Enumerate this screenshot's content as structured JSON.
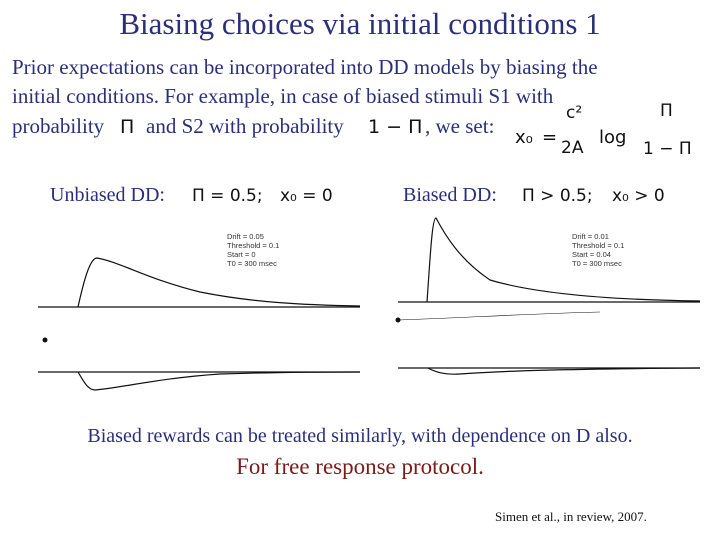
{
  "title": "Biasing choices via initial conditions 1",
  "intro": {
    "lines": [
      "Prior expectations can be incorporated into DD models by biasing the",
      "initial conditions. For example, in case of biased stimuli S1 with"
    ],
    "prob1_prefix": "probability",
    "prob1": "Π",
    "prob2_prefix": "and S2 with probability",
    "prob2": "1 − Π",
    "suffix": ", we set:"
  },
  "formula": {
    "lhs": "x₀",
    "eq": "=",
    "num": "c²",
    "den": "2A",
    "fn": "log",
    "frac_num": "Π",
    "frac_den": "1 − Π"
  },
  "panels": [
    {
      "label": "Unbiased DD:",
      "condition": "Π = 0.5;",
      "start": "x₀ = 0",
      "params": [
        "Drift = 0.05",
        "Threshold = 0.1",
        "Start = 0",
        "T0 = 300 msec"
      ]
    },
    {
      "label": "Biased DD:",
      "condition": "Π > 0.5;",
      "start": "x₀ > 0",
      "params": [
        "Drift = 0.01",
        "Threshold = 0.1",
        "Start = 0.04",
        "T0 = 300 msec"
      ]
    }
  ],
  "footer": {
    "rewards": "Biased rewards can be treated similarly, with dependence on D also.",
    "protocol": "For free response protocol.",
    "citation": "Simen et al., in review, 2007."
  }
}
